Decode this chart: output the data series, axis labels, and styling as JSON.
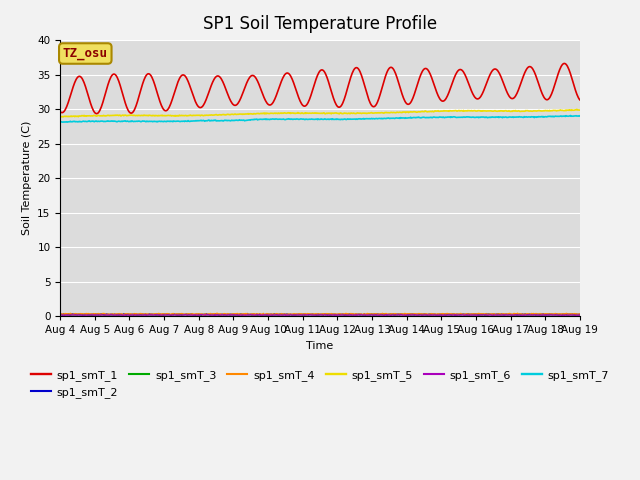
{
  "title": "SP1 Soil Temperature Profile",
  "xlabel": "Time",
  "ylabel": "Soil Temperature (C)",
  "ylim": [
    0,
    40
  ],
  "background_color": "#dcdcdc",
  "annotation_text": "TZ_osu",
  "annotation_color": "#8b0000",
  "annotation_bg": "#f0e060",
  "series_order": [
    "sp1_smT_1",
    "sp1_smT_2",
    "sp1_smT_3",
    "sp1_smT_4",
    "sp1_smT_5",
    "sp1_smT_6",
    "sp1_smT_7"
  ],
  "colors": {
    "sp1_smT_1": "#dd0000",
    "sp1_smT_2": "#0000cc",
    "sp1_smT_3": "#00aa00",
    "sp1_smT_4": "#ff8800",
    "sp1_smT_5": "#eedd00",
    "sp1_smT_6": "#aa00bb",
    "sp1_smT_7": "#00ccdd"
  },
  "lws": {
    "sp1_smT_1": 1.2,
    "sp1_smT_2": 1.0,
    "sp1_smT_3": 1.0,
    "sp1_smT_4": 1.0,
    "sp1_smT_5": 1.2,
    "sp1_smT_6": 1.0,
    "sp1_smT_7": 1.2
  },
  "tick_labels": [
    "Aug 4",
    "Aug 5",
    "Aug 6",
    "Aug 7",
    "Aug 8",
    "Aug 9",
    "Aug 10",
    "Aug 11",
    "Aug 12",
    "Aug 13",
    "Aug 14",
    "Aug 15",
    "Aug 16",
    "Aug 17",
    "Aug 18",
    "Aug 19"
  ],
  "yticks": [
    0,
    5,
    10,
    15,
    20,
    25,
    30,
    35,
    40
  ],
  "grid_color": "#ffffff",
  "title_fontsize": 12,
  "axis_fontsize": 8,
  "tick_fontsize": 7.5,
  "legend_fontsize": 8
}
